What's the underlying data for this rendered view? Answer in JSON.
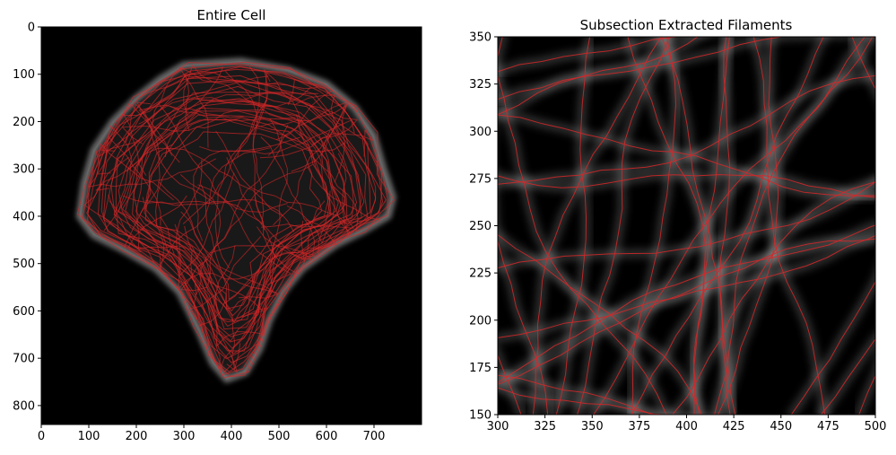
{
  "chart_data": [
    {
      "type": "image",
      "title": "Entire Cell",
      "xlim": [
        0,
        800
      ],
      "ylim": [
        840,
        0
      ],
      "x_ticks": [
        0,
        100,
        200,
        300,
        400,
        500,
        600,
        700
      ],
      "y_ticks": [
        0,
        100,
        200,
        300,
        400,
        500,
        600,
        700,
        800
      ],
      "background_color": "#000000",
      "filament_color": "#d62728",
      "cell_color": "#bfbfbf"
    },
    {
      "type": "image",
      "title": "Subsection Extracted Filaments",
      "xlim": [
        300,
        500
      ],
      "ylim": [
        150,
        350
      ],
      "x_ticks": [
        300,
        325,
        350,
        375,
        400,
        425,
        450,
        475,
        500
      ],
      "y_ticks": [
        150,
        175,
        200,
        225,
        250,
        275,
        300,
        325,
        350
      ],
      "background_color": "#000000",
      "filament_color": "#d62728",
      "cell_color": "#bfbfbf"
    }
  ]
}
